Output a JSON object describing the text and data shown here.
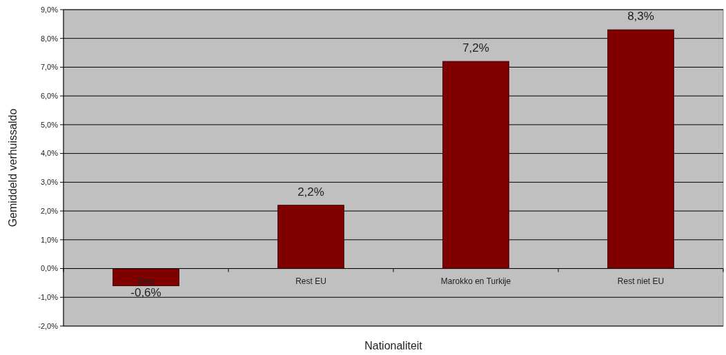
{
  "chart_data": {
    "type": "bar",
    "xlabel": "Nationaliteit",
    "ylabel": "Gemiddeld verhuissaldo",
    "categories": [
      "Belg",
      "Rest EU",
      "Marokko en Turkije",
      "Rest niet EU"
    ],
    "values": [
      -0.6,
      2.2,
      7.2,
      8.3
    ],
    "value_labels": [
      "-0,6%",
      "2,2%",
      "7,2%",
      "8,3%"
    ],
    "color": "#800000",
    "ylim": [
      -2,
      9
    ],
    "yticks": [
      {
        "value": -2,
        "label": "-2,0%"
      },
      {
        "value": -1,
        "label": "-1,0%"
      },
      {
        "value": 0,
        "label": "0,0%"
      },
      {
        "value": 1,
        "label": "1,0%"
      },
      {
        "value": 2,
        "label": "2,0%"
      },
      {
        "value": 3,
        "label": "3,0%"
      },
      {
        "value": 4,
        "label": "4,0%"
      },
      {
        "value": 5,
        "label": "5,0%"
      },
      {
        "value": 6,
        "label": "6,0%"
      },
      {
        "value": 7,
        "label": "7,0%"
      },
      {
        "value": 8,
        "label": "8,0%"
      },
      {
        "value": 9,
        "label": "9,0%"
      }
    ],
    "grid": "y"
  }
}
